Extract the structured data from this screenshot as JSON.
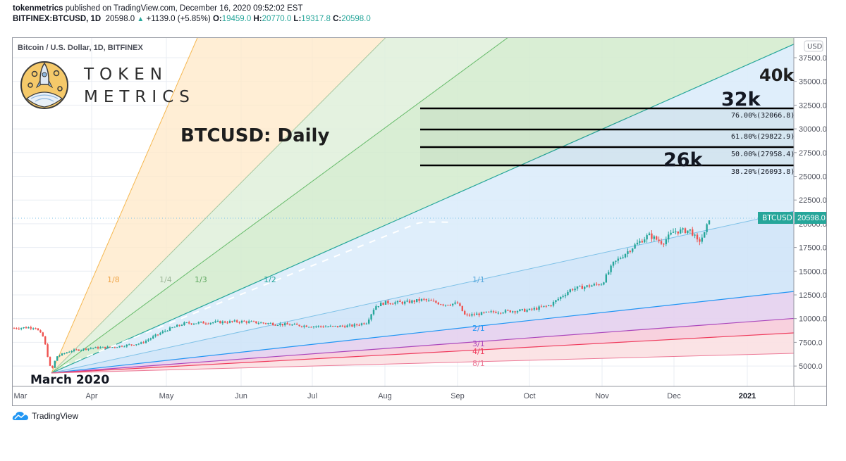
{
  "header": {
    "publisher": "tokenmetrics",
    "published_text": "published on TradingView.com, December 16, 2020 09:52:02 EST",
    "symbol_line": "BITFINEX:BTCUSD, 1D",
    "last_price": "20598.0",
    "change_arrow": "▲",
    "change": "+1139.0 (+5.85%)",
    "o_label": "O:",
    "o_value": "19459.0",
    "h_label": "H:",
    "h_value": "20770.0",
    "l_label": "L:",
    "l_value": "19317.8",
    "c_label": "C:",
    "c_value": "20598.0"
  },
  "chart": {
    "series_title": "Bitcoin / U.S. Dollar, 1D, BITFINEX",
    "logo_line1": "TOKEN",
    "logo_line2": "METRICS",
    "annotation_title": "BTCUSD: Daily",
    "annotation_start": "March 2020",
    "annotation_40k": "40k",
    "annotation_32k": "32k",
    "annotation_26k": "26k",
    "currency": "USD",
    "price_tag_label": "BTCUSD",
    "price_tag_value": "20598.0",
    "fib_labels": [
      "76.00%(32066.8)",
      "61.80%(29822.9)",
      "50.00%(27958.4)",
      "38.20%(26093.8)"
    ],
    "gann_labels": {
      "l18": "1/8",
      "l14": "1/4",
      "l13": "1/3",
      "l12": "1/2",
      "l11": "1/1",
      "l21": "2/1",
      "l31": "3/1",
      "l41": "4/1",
      "l81": "8/1"
    },
    "y_ticks": [
      "37500.0",
      "35000.0",
      "32500.0",
      "30000.0",
      "27500.0",
      "25000.0",
      "22500.0",
      "20000.0",
      "17500.0",
      "15000.0",
      "12500.0",
      "10000.0",
      "7500.0",
      "5000.0"
    ],
    "x_ticks": [
      "Mar",
      "Apr",
      "May",
      "Jun",
      "Jul",
      "Aug",
      "Sep",
      "Oct",
      "Nov",
      "Dec",
      "2021"
    ]
  },
  "footer": {
    "brand": "TradingView"
  },
  "colors": {
    "up": "#26a69a",
    "down": "#ef5350",
    "accent": "#2196f3"
  },
  "chart_data": {
    "type": "candlestick",
    "title": "BTCUSD: Daily",
    "subtitle": "Bitcoin / U.S. Dollar, 1D, BITFINEX",
    "xlabel": "",
    "ylabel": "USD",
    "ylim": [
      3500,
      39500
    ],
    "x_ticks": [
      "Mar",
      "Apr",
      "May",
      "Jun",
      "Jul",
      "Aug",
      "Sep",
      "Oct",
      "Nov",
      "Dec",
      "2021"
    ],
    "y_ticks": [
      5000,
      7500,
      10000,
      12500,
      15000,
      17500,
      20000,
      22500,
      25000,
      27500,
      30000,
      32500,
      35000,
      37500
    ],
    "last": {
      "open": 19459.0,
      "high": 20770.0,
      "low": 19317.8,
      "close": 20598.0,
      "change": 1139.0,
      "change_pct": 5.85
    },
    "approx_monthly_close": {
      "categories": [
        "Mar",
        "Apr",
        "May",
        "Jun",
        "Jul",
        "Aug",
        "Sep",
        "Oct",
        "Nov",
        "Dec(16)"
      ],
      "values": [
        6400,
        8600,
        9450,
        9150,
        11300,
        11650,
        10800,
        13800,
        19700,
        20598
      ]
    },
    "fibonacci_levels": [
      {
        "level": "76.00%",
        "price": 32066.8
      },
      {
        "level": "61.80%",
        "price": 29822.9
      },
      {
        "level": "50.00%",
        "price": 27958.4
      },
      {
        "level": "38.20%",
        "price": 26093.8
      }
    ],
    "gann_fan": {
      "origin": "March 2020 low (~3800)",
      "angles": [
        "1/8",
        "1/4",
        "1/3",
        "1/2",
        "1/1",
        "2/1",
        "3/1",
        "4/1",
        "8/1"
      ]
    },
    "annotations": [
      "40k",
      "32k",
      "26k",
      "March 2020",
      "BTCUSD: Daily"
    ]
  }
}
